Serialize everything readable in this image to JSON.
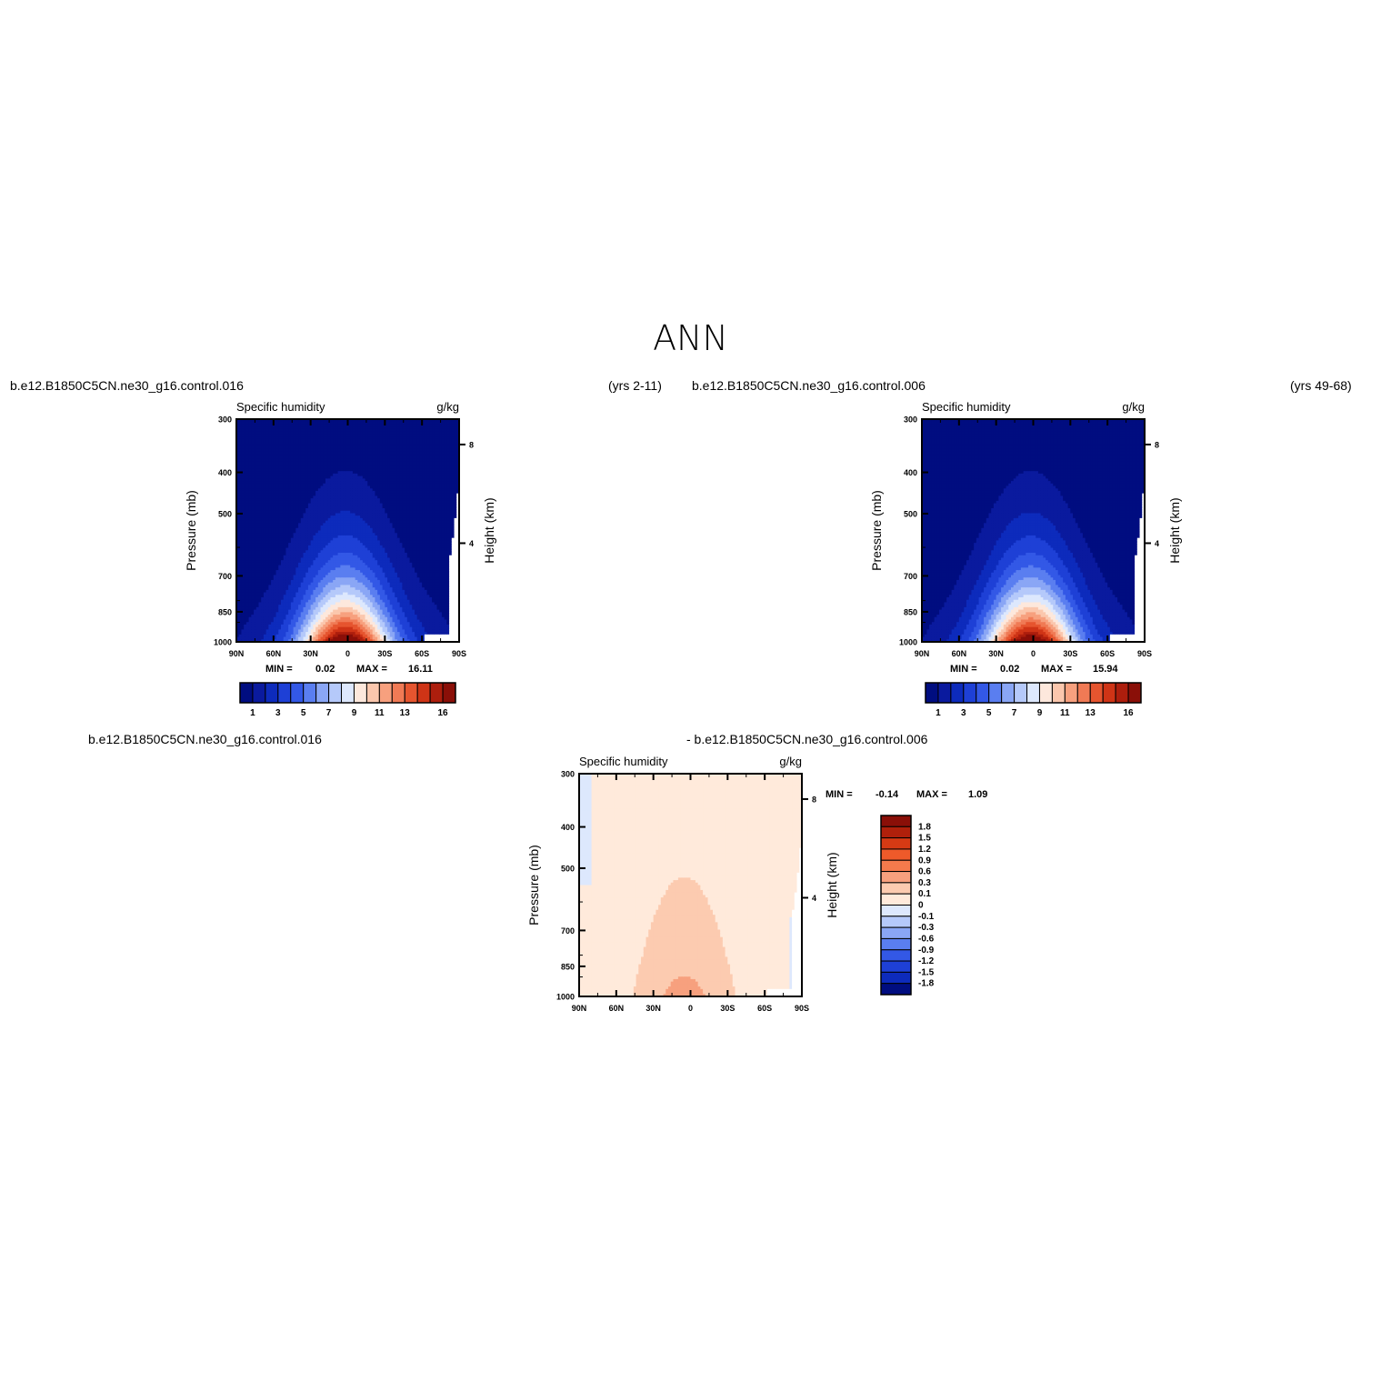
{
  "page_title": "ANN",
  "top_left_header": {
    "case": "b.e12.B1850C5CN.ne30_g16.control.016",
    "years": "(yrs 2-11)"
  },
  "top_right_header": {
    "case": "b.e12.B1850C5CN.ne30_g16.control.006",
    "years": "(yrs 49-68)"
  },
  "bottom_header": {
    "left_case": "b.e12.B1850C5CN.ne30_g16.control.016",
    "right_case": "- b.e12.B1850C5CN.ne30_g16.control.006"
  },
  "colors": {
    "field_levels": [
      "#000d80",
      "#0a1a9e",
      "#0d2bbc",
      "#1e40d6",
      "#3358e6",
      "#5a7ef0",
      "#8aa6f5",
      "#b5c9fa",
      "#dde8fd",
      "#fde8dc",
      "#fbc7ad",
      "#f7a07e",
      "#f07a55",
      "#e6552f",
      "#cf3416",
      "#ad1e0d",
      "#8a0f08"
    ],
    "diff_levels": [
      "#000d80",
      "#0d2bbc",
      "#1e40d6",
      "#3358e6",
      "#5a7ef0",
      "#8aa6f5",
      "#b5c9fa",
      "#dde8fd",
      "#ffeadb",
      "#fccbb0",
      "#f7a07e",
      "#f47a4c",
      "#ee5a2a",
      "#d63a14",
      "#b0200b",
      "#8a0f08"
    ],
    "missing": "#ffffff"
  },
  "chart_data": [
    {
      "type": "heatmap",
      "id": "top-left",
      "title": "Specific humidity",
      "units": "g/kg",
      "ylabel": "Pressure (mb)",
      "y2label": "Height (km)",
      "x_ticks": [
        "90N",
        "60N",
        "30N",
        "0",
        "30S",
        "60S",
        "90S"
      ],
      "x_values": [
        90,
        60,
        30,
        0,
        -30,
        -60,
        -90
      ],
      "y_ticks": [
        "300",
        "400",
        "500",
        "700",
        "850",
        "1000"
      ],
      "y_values": [
        300,
        400,
        500,
        700,
        850,
        1000
      ],
      "y2_ticks": [
        "8",
        "4"
      ],
      "y2_values": [
        8,
        4
      ],
      "xlim": [
        90,
        -90
      ],
      "ylim": [
        1000,
        300
      ],
      "min_label": "MIN =",
      "min_value": "0.02",
      "max_label": "MAX =",
      "max_value": "16.11",
      "colorbar_labels": [
        "1",
        "3",
        "5",
        "7",
        "9",
        "11",
        "13",
        "16"
      ],
      "contour_levels": [
        1,
        2,
        3,
        4,
        5,
        6,
        7,
        8,
        9,
        10,
        11,
        12,
        13,
        14,
        15,
        16
      ],
      "surface_peak": 16.11,
      "peak_lat": 2,
      "peak_halfwidth": 35,
      "scale_height": 2.4
    },
    {
      "type": "heatmap",
      "id": "top-right",
      "title": "Specific humidity",
      "units": "g/kg",
      "ylabel": "Pressure (mb)",
      "y2label": "Height (km)",
      "x_ticks": [
        "90N",
        "60N",
        "30N",
        "0",
        "30S",
        "60S",
        "90S"
      ],
      "x_values": [
        90,
        60,
        30,
        0,
        -30,
        -60,
        -90
      ],
      "y_ticks": [
        "300",
        "400",
        "500",
        "700",
        "850",
        "1000"
      ],
      "y_values": [
        300,
        400,
        500,
        700,
        850,
        1000
      ],
      "y2_ticks": [
        "8",
        "4"
      ],
      "y2_values": [
        8,
        4
      ],
      "xlim": [
        90,
        -90
      ],
      "ylim": [
        1000,
        300
      ],
      "min_label": "MIN =",
      "min_value": "0.02",
      "max_label": "MAX =",
      "max_value": "15.94",
      "colorbar_labels": [
        "1",
        "3",
        "5",
        "7",
        "9",
        "11",
        "13",
        "16"
      ],
      "contour_levels": [
        1,
        2,
        3,
        4,
        5,
        6,
        7,
        8,
        9,
        10,
        11,
        12,
        13,
        14,
        15,
        16
      ],
      "surface_peak": 15.94,
      "peak_lat": 2,
      "peak_halfwidth": 35,
      "scale_height": 2.4
    },
    {
      "type": "heatmap",
      "id": "bottom-diff",
      "title": "Specific humidity",
      "units": "g/kg",
      "ylabel": "Pressure (mb)",
      "y2label": "Height (km)",
      "x_ticks": [
        "90N",
        "60N",
        "30N",
        "0",
        "30S",
        "60S",
        "90S"
      ],
      "x_values": [
        90,
        60,
        30,
        0,
        -30,
        -60,
        -90
      ],
      "y_ticks": [
        "300",
        "400",
        "500",
        "700",
        "850",
        "1000"
      ],
      "y_values": [
        300,
        400,
        500,
        700,
        850,
        1000
      ],
      "y2_ticks": [
        "8",
        "4"
      ],
      "y2_values": [
        8,
        4
      ],
      "xlim": [
        90,
        -90
      ],
      "ylim": [
        1000,
        300
      ],
      "min_label": "MIN =",
      "min_value": "-0.14",
      "max_label": "MAX =",
      "max_value": "1.09",
      "colorbar_labels": [
        "1.8",
        "1.5",
        "1.2",
        "0.9",
        "0.6",
        "0.3",
        "0.1",
        "0",
        "-0.1",
        "-0.3",
        "-0.6",
        "-0.9",
        "-1.2",
        "-1.5",
        "-1.8"
      ],
      "contour_levels": [
        -1.8,
        -1.5,
        -1.2,
        -0.9,
        -0.6,
        -0.3,
        -0.1,
        0,
        0.1,
        0.3,
        0.6,
        0.9,
        1.2,
        1.5,
        1.8
      ]
    }
  ]
}
